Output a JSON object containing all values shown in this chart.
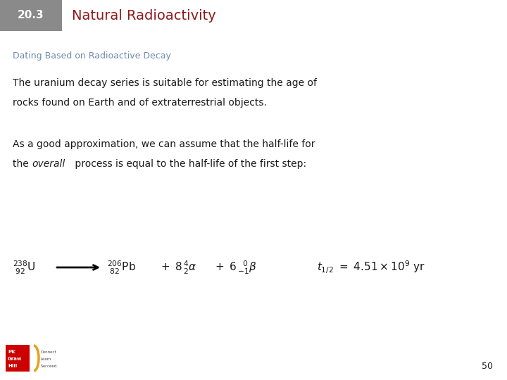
{
  "header_box_color": "#8a8a8a",
  "header_number": "20.3",
  "header_number_color": "#ffffff",
  "header_title": "Natural Radioactivity",
  "header_title_color": "#8b1a1a",
  "subtitle": "Dating Based on Radioactive Decay",
  "subtitle_color": "#6b8cae",
  "para1_line1": "The uranium decay series is suitable for estimating the age of",
  "para1_line2": "rocks found on Earth and of extraterrestrial objects.",
  "para2_line1": "As a good approximation, we can assume that the half-life for",
  "para2_line2_pre": "the ",
  "para2_line2_italic": "overall",
  "para2_line2_post": " process is equal to the half-life of the first step:",
  "text_color": "#1a1a1a",
  "page_number": "50",
  "bg_color": "#ffffff",
  "header_fontsize": 11,
  "title_fontsize": 14,
  "subtitle_fontsize": 9,
  "body_fontsize": 10,
  "eq_fontsize": 11
}
